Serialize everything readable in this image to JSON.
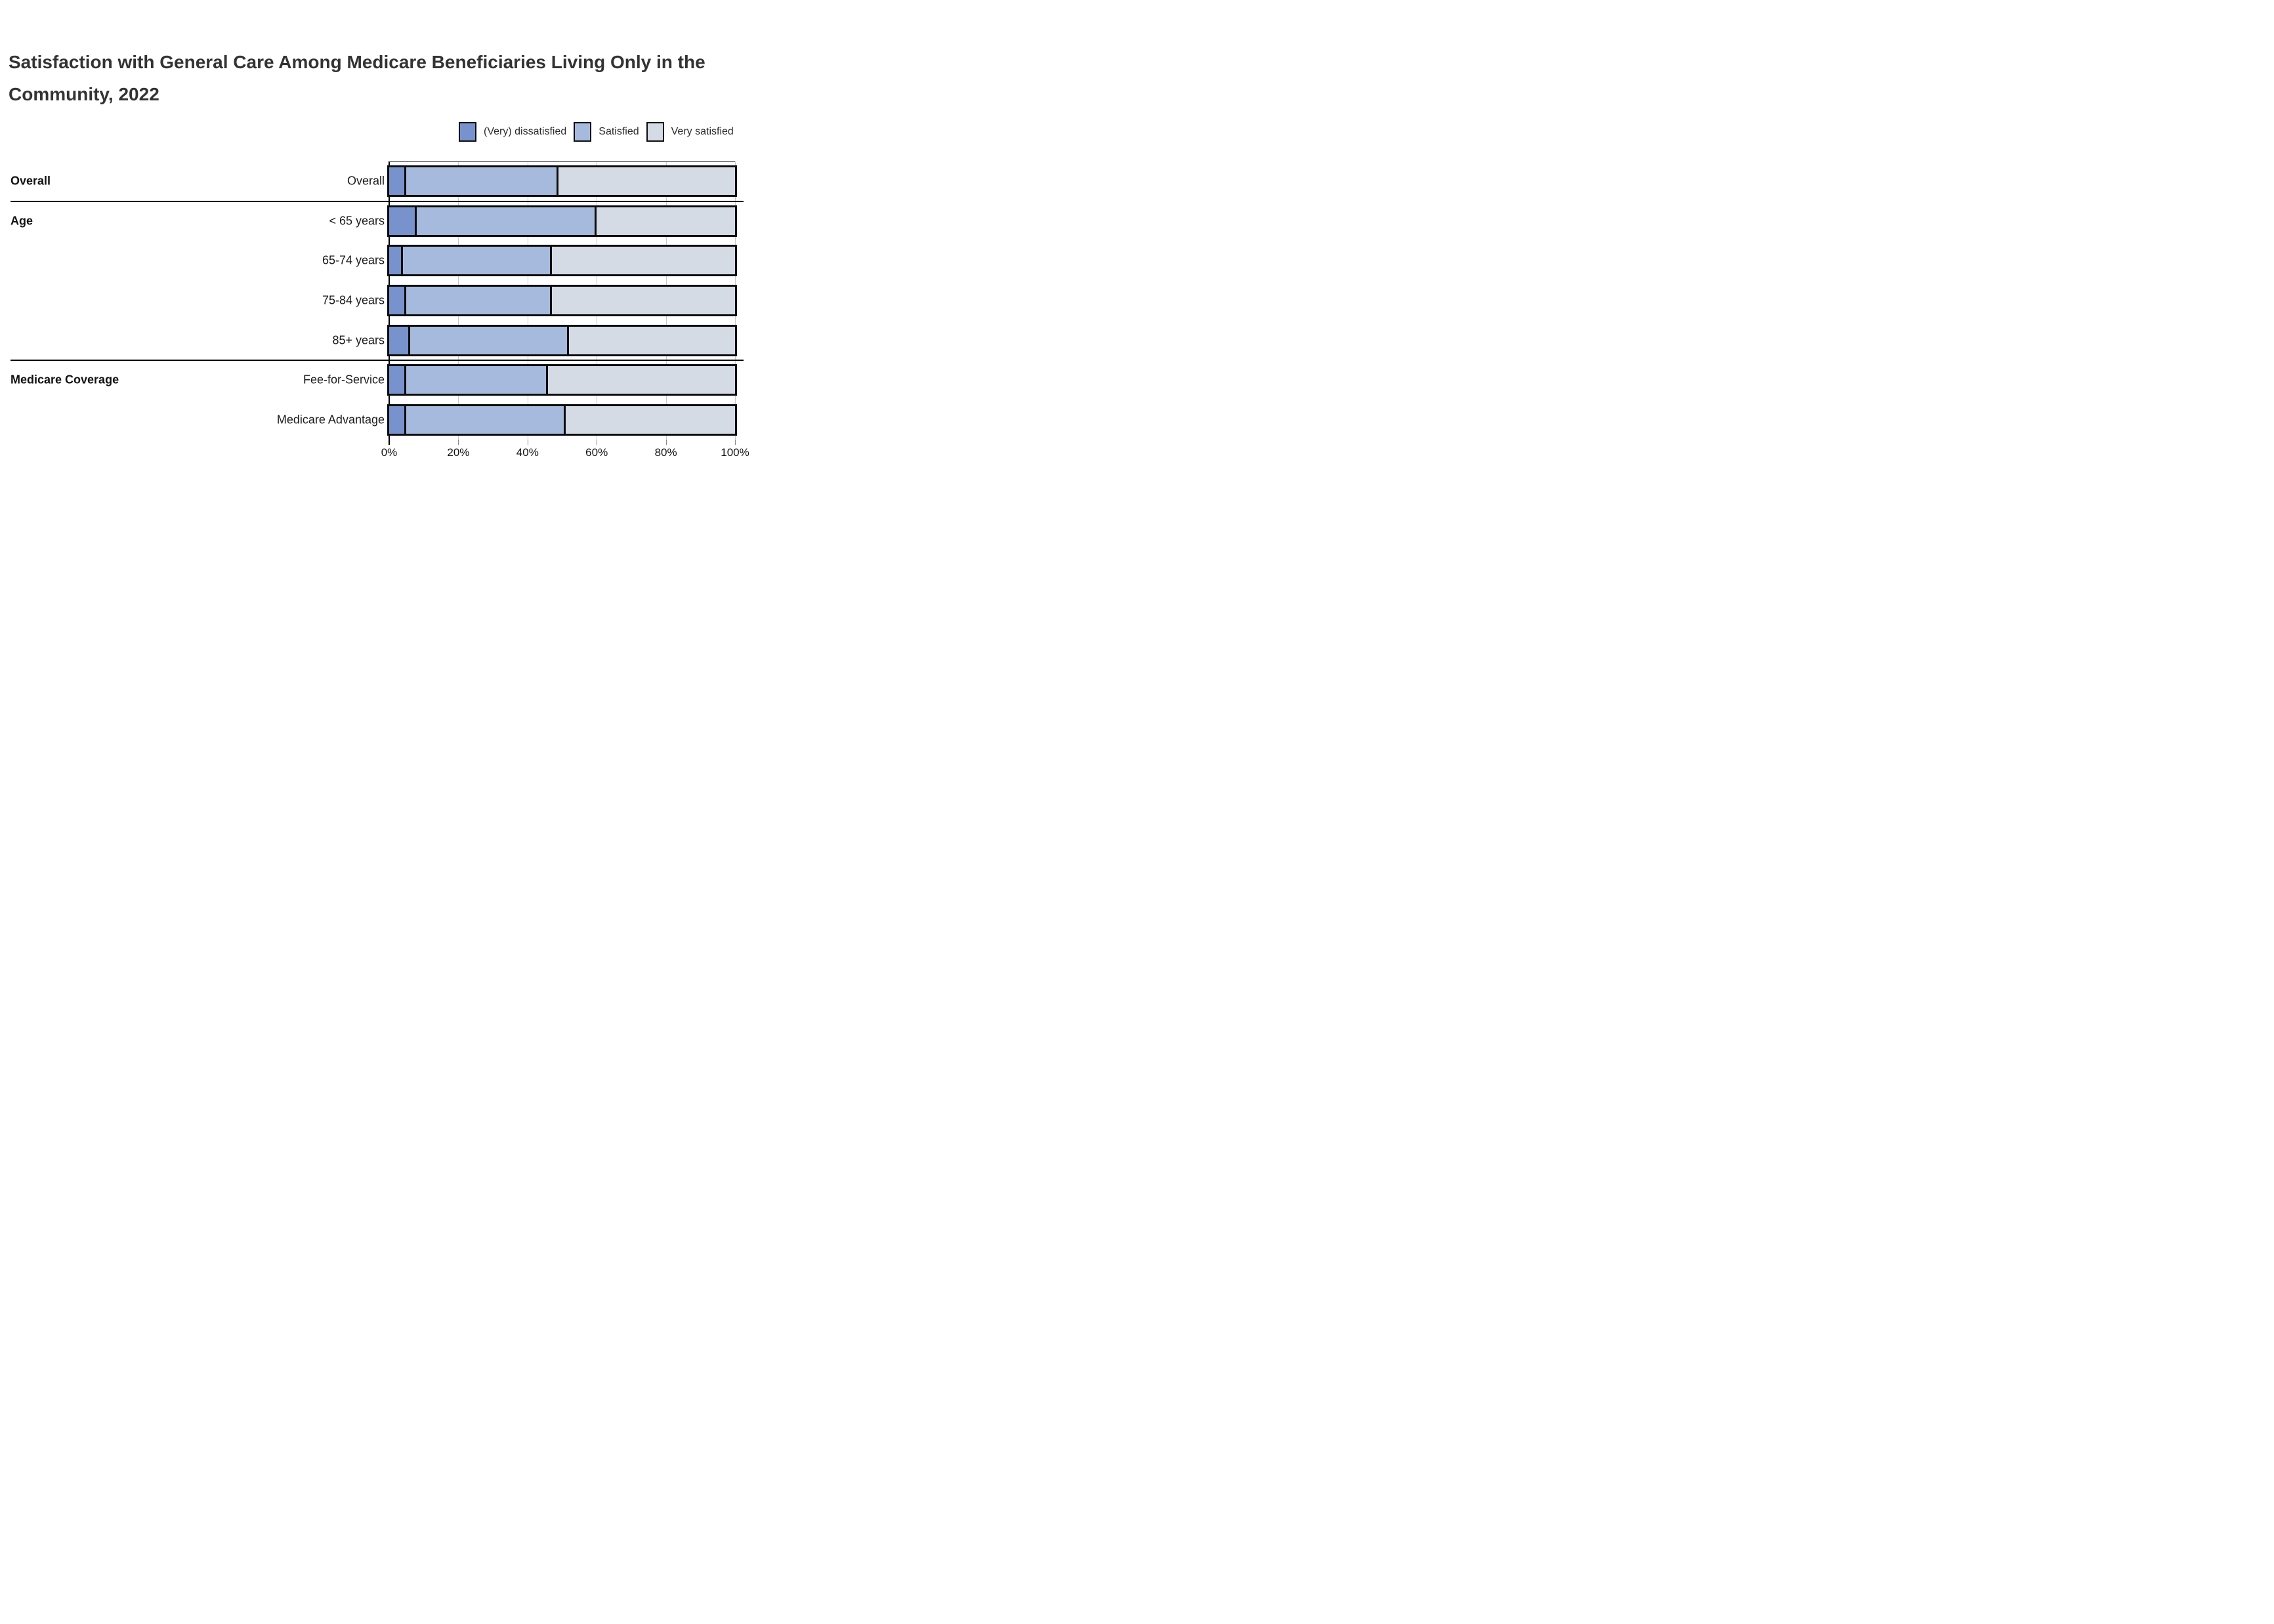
{
  "title": "Satisfaction with General Care Among Medicare Beneficiaries Living Only in the Community, 2022",
  "title_lines": [
    "Satisfaction with General Care Among Medicare Beneficiaries Living Only in the",
    "Community, 2022"
  ],
  "legend": {
    "position": "top-right",
    "items": [
      {
        "label": "(Very) dissatisfied",
        "color": "#7792cd"
      },
      {
        "label": "Satisfied",
        "color": "#a6bade"
      },
      {
        "label": "Very satisfied",
        "color": "#d5dbe5"
      }
    ]
  },
  "colors": {
    "bar_border": "#0d0d0d",
    "gridline": "#c9c9c9",
    "axis": "#000000",
    "title_text": "#333333",
    "label_text": "#1a1a1a"
  },
  "chart_data": {
    "type": "bar",
    "orientation": "horizontal-stacked",
    "unit": "percent",
    "xlim": [
      0,
      100
    ],
    "x_ticks": [
      "0%",
      "20%",
      "40%",
      "60%",
      "80%",
      "100%"
    ],
    "x_tick_values": [
      0,
      20,
      40,
      60,
      80,
      100
    ],
    "grid": true,
    "legend_entries": [
      "(Very) dissatisfied",
      "Satisfied",
      "Very satisfied"
    ],
    "series_colors": [
      "#7792cd",
      "#a6bade",
      "#d5dbe5"
    ],
    "groups": [
      {
        "label": "Overall",
        "rows": [
          {
            "label": "Overall",
            "values": [
              5,
              44,
              51
            ]
          }
        ]
      },
      {
        "label": "Age",
        "rows": [
          {
            "label": "< 65 years",
            "values": [
              8,
              52,
              40
            ]
          },
          {
            "label": "65-74 years",
            "values": [
              4,
              43,
              53
            ]
          },
          {
            "label": "75-84 years",
            "values": [
              5,
              42,
              53
            ]
          },
          {
            "label": "85+ years",
            "values": [
              6,
              46,
              48
            ]
          }
        ]
      },
      {
        "label": "Medicare Coverage",
        "rows": [
          {
            "label": "Fee-for-Service",
            "values": [
              5,
              41,
              54
            ]
          },
          {
            "label": "Medicare Advantage",
            "values": [
              5,
              46,
              49
            ]
          }
        ]
      }
    ]
  }
}
